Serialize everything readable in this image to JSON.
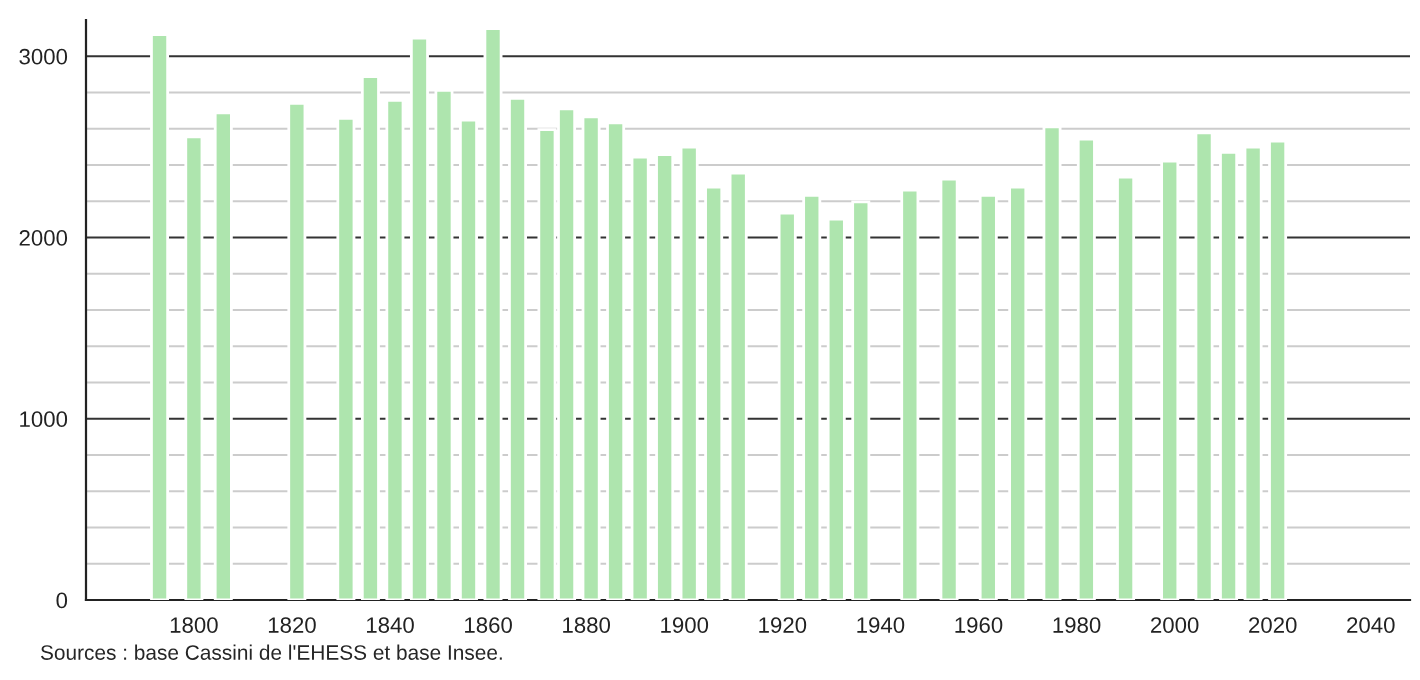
{
  "chart_data": {
    "type": "bar",
    "color": "#aee5ae",
    "x": [
      1793,
      1800,
      1806,
      1821,
      1831,
      1836,
      1841,
      1846,
      1851,
      1856,
      1861,
      1866,
      1872,
      1876,
      1881,
      1886,
      1891,
      1896,
      1901,
      1906,
      1911,
      1921,
      1926,
      1931,
      1936,
      1946,
      1954,
      1962,
      1968,
      1975,
      1982,
      1990,
      1999,
      2006,
      2011,
      2016,
      2021
    ],
    "values": [
      3120,
      2555,
      2688,
      2740,
      2658,
      2887,
      2757,
      3100,
      2812,
      2647,
      3153,
      2768,
      2595,
      2710,
      2665,
      2632,
      2444,
      2458,
      2499,
      2278,
      2355,
      2134,
      2233,
      2101,
      2196,
      2262,
      2322,
      2233,
      2278,
      2610,
      2543,
      2333,
      2422,
      2577,
      2470,
      2499,
      2532
    ],
    "xlim": [
      1778,
      2048
    ],
    "xticks": [
      1800,
      1820,
      1840,
      1860,
      1880,
      1900,
      1920,
      1940,
      1960,
      1980,
      2000,
      2020,
      2040
    ],
    "ylim": [
      0,
      3200
    ],
    "yticks": [
      0,
      {
        "value": 200,
        "label": null
      },
      {
        "value": 400,
        "label": null
      },
      {
        "value": 600,
        "label": null
      },
      {
        "value": 800,
        "label": null
      },
      1000,
      {
        "value": 1200,
        "label": null
      },
      {
        "value": 1400,
        "label": null
      },
      {
        "value": 1600,
        "label": null
      },
      {
        "value": 1800,
        "label": null
      },
      2000,
      {
        "value": 2200,
        "label": null
      },
      {
        "value": 2400,
        "label": null
      },
      {
        "value": 2600,
        "label": null
      },
      {
        "value": 2800,
        "label": null
      },
      3000
    ],
    "grid": "y",
    "annotations": [
      "Sources : base Cassini de l'EHESS et base Insee."
    ]
  }
}
